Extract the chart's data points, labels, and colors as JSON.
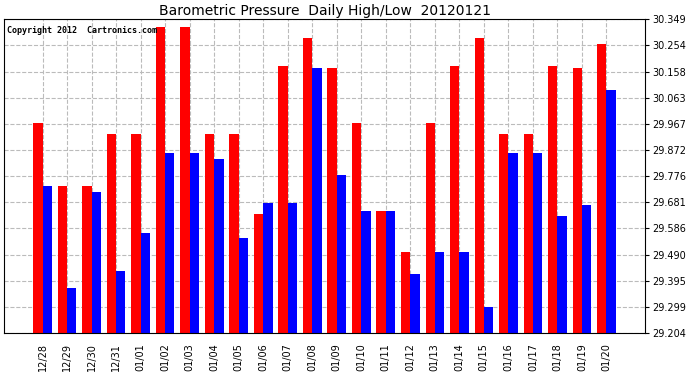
{
  "title": "Barometric Pressure  Daily High/Low  20120121",
  "copyright": "Copyright 2012  Cartronics.com",
  "labels": [
    "12/28",
    "12/29",
    "12/30",
    "12/31",
    "01/01",
    "01/02",
    "01/03",
    "01/04",
    "01/05",
    "01/06",
    "01/07",
    "01/08",
    "01/09",
    "01/10",
    "01/11",
    "01/12",
    "01/13",
    "01/14",
    "01/15",
    "01/16",
    "01/17",
    "01/18",
    "01/19",
    "01/20"
  ],
  "highs": [
    29.97,
    29.74,
    29.74,
    29.93,
    29.93,
    30.32,
    30.32,
    29.93,
    29.93,
    29.64,
    30.18,
    30.28,
    30.17,
    29.97,
    29.65,
    29.5,
    29.97,
    30.18,
    30.28,
    29.93,
    29.93,
    30.18,
    30.17,
    30.26
  ],
  "lows": [
    29.74,
    29.37,
    29.72,
    29.43,
    29.57,
    29.86,
    29.86,
    29.84,
    29.55,
    29.68,
    29.68,
    30.17,
    29.78,
    29.65,
    29.65,
    29.42,
    29.5,
    29.5,
    29.3,
    29.86,
    29.86,
    29.63,
    29.67,
    30.09
  ],
  "ylim": [
    29.204,
    30.349
  ],
  "yticks": [
    29.204,
    29.299,
    29.395,
    29.49,
    29.586,
    29.681,
    29.776,
    29.872,
    29.967,
    30.063,
    30.158,
    30.254,
    30.349
  ],
  "ytick_labels": [
    "29.204",
    "29.299",
    "29.395",
    "29.490",
    "29.586",
    "29.681",
    "29.776",
    "29.872",
    "29.967",
    "30.063",
    "30.158",
    "30.254",
    "30.349"
  ],
  "bar_width": 0.38,
  "high_color": "#ff0000",
  "low_color": "#0000ff",
  "bg_color": "#ffffff",
  "grid_color": "#bbbbbb",
  "title_fontsize": 10,
  "tick_fontsize": 7,
  "label_fontsize": 7,
  "figwidth": 6.9,
  "figheight": 3.75,
  "dpi": 100
}
